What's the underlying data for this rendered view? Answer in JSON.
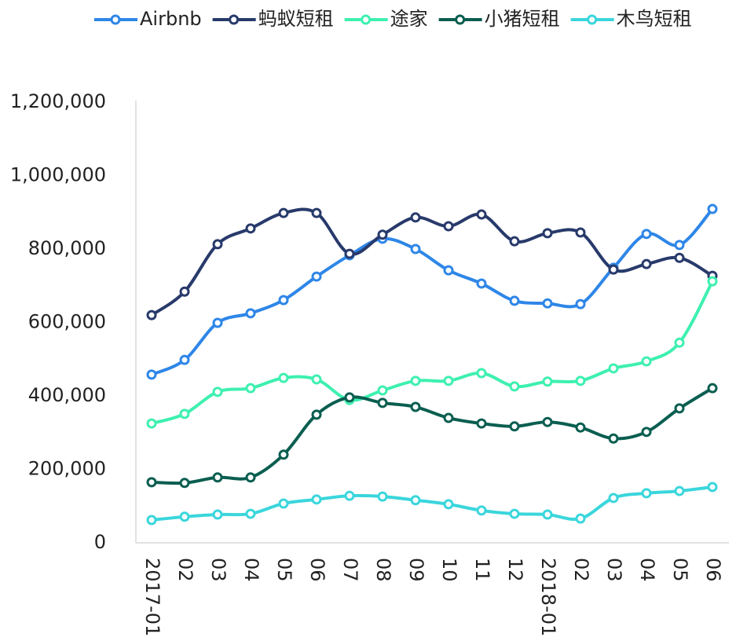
{
  "chart_data": {
    "type": "line",
    "categories": [
      "2017-01",
      "02",
      "03",
      "04",
      "05",
      "06",
      "07",
      "08",
      "09",
      "10",
      "11",
      "12",
      "2018-01",
      "02",
      "03",
      "04",
      "05",
      "06"
    ],
    "series": [
      {
        "name": "Airbnb",
        "color": "#2e86e8",
        "values": [
          458000,
          498000,
          599000,
          625000,
          661000,
          725000,
          783000,
          828000,
          800000,
          742000,
          706000,
          659000,
          652000,
          650000,
          749000,
          841000,
          811000,
          909000
        ]
      },
      {
        "name": "蚂蚁短租",
        "color": "#283a6b",
        "values": [
          620000,
          684000,
          813000,
          856000,
          898000,
          898000,
          787000,
          839000,
          886000,
          862000,
          894000,
          821000,
          843000,
          845000,
          744000,
          759000,
          776000,
          727000
        ]
      },
      {
        "name": "途家",
        "color": "#3ef0b0",
        "values": [
          325000,
          351000,
          411000,
          421000,
          449000,
          445000,
          389000,
          415000,
          441000,
          441000,
          462000,
          426000,
          439000,
          441000,
          475000,
          494000,
          545000,
          712000
        ]
      },
      {
        "name": "小猪短租",
        "color": "#0a5e50",
        "values": [
          165000,
          163000,
          178000,
          178000,
          240000,
          349000,
          396000,
          381000,
          370000,
          340000,
          325000,
          317000,
          329000,
          314000,
          284000,
          302000,
          366000,
          421000
        ]
      },
      {
        "name": "木鸟短租",
        "color": "#3ad6dc",
        "values": [
          62000,
          71000,
          77000,
          79000,
          107000,
          118000,
          128000,
          126000,
          116000,
          105000,
          88000,
          79000,
          77000,
          66000,
          122000,
          135000,
          141000,
          152000
        ]
      }
    ],
    "ylim": [
      0,
      1200000
    ],
    "yticks": [
      {
        "value": 0,
        "label": "0"
      },
      {
        "value": 200000,
        "label": "200,000"
      },
      {
        "value": 400000,
        "label": "400,000"
      },
      {
        "value": 600000,
        "label": "600,000"
      },
      {
        "value": 800000,
        "label": "800,000"
      },
      {
        "value": 1000000,
        "label": "1,000,000"
      },
      {
        "value": 1200000,
        "label": "1,200,000"
      }
    ],
    "grid": false,
    "legend": "top"
  }
}
